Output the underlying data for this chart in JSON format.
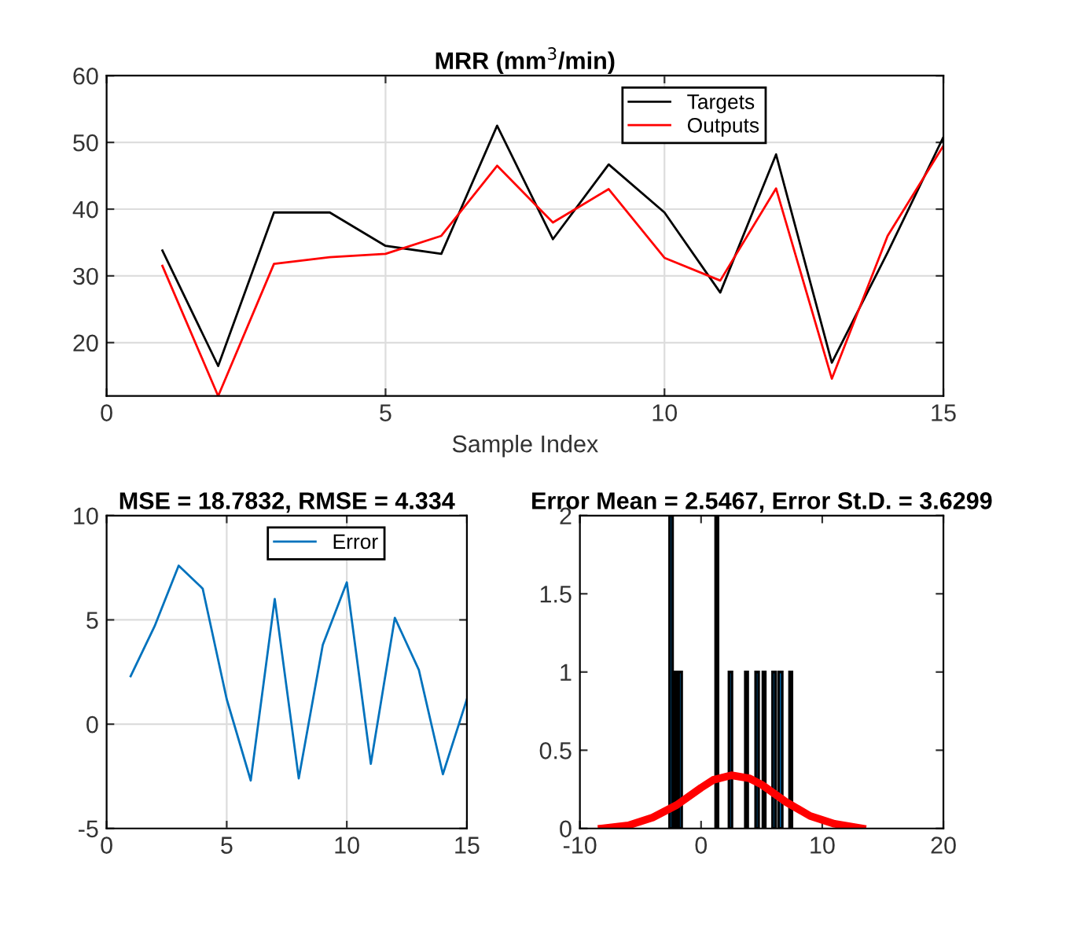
{
  "chart_data": [
    {
      "type": "line",
      "title": "MRR (mm$^{3}$/min)",
      "xlabel": "Sample Index",
      "x": [
        1,
        2,
        3,
        4,
        5,
        6,
        7,
        8,
        9,
        10,
        11,
        12,
        13,
        14,
        15
      ],
      "series": [
        {
          "name": "Targets",
          "color": "#000000",
          "values": [
            33.8,
            16.5,
            39.5,
            39.5,
            34.5,
            33.3,
            52.5,
            35.5,
            46.7,
            39.5,
            27.5,
            48.2,
            17,
            33.5,
            50.8
          ]
        },
        {
          "name": "Outputs",
          "color": "#ff0000",
          "values": [
            31.5,
            12,
            31.8,
            32.8,
            33.3,
            36,
            46.5,
            38,
            43,
            32.7,
            29.3,
            43.1,
            14.6,
            36,
            49.5
          ]
        }
      ],
      "xlim": [
        0,
        15
      ],
      "xticks": [
        0,
        5,
        10,
        15
      ],
      "ylim": [
        12,
        60
      ],
      "yticks": [
        20,
        30,
        40,
        50,
        60
      ],
      "grid": true,
      "legend": "top right"
    },
    {
      "type": "line",
      "title": "MSE = 18.7832, RMSE = 4.334",
      "x": [
        1,
        2,
        3,
        4,
        5,
        6,
        7,
        8,
        9,
        10,
        11,
        12,
        13,
        14,
        15
      ],
      "series": [
        {
          "name": "Error",
          "color": "#0072bd",
          "values": [
            2.3,
            4.7,
            7.6,
            6.5,
            1.2,
            -2.7,
            6.0,
            -2.6,
            3.8,
            6.8,
            -1.9,
            5.1,
            2.6,
            -2.4,
            1.2
          ]
        }
      ],
      "xlim": [
        0,
        15
      ],
      "xticks": [
        0,
        5,
        10,
        15
      ],
      "ylim": [
        -5,
        10
      ],
      "yticks": [
        -5,
        0,
        5,
        10
      ],
      "grid": true,
      "legend": "top right"
    },
    {
      "type": "histogram",
      "title": "Error Mean = 2.5467, Error St.D. = 3.6299",
      "color": "#0072bd",
      "bins": [
        -2.6,
        -2.35,
        -2.2,
        -2.0,
        -1.85,
        -1.6,
        1.2,
        1.4,
        2.3,
        2.55,
        3.65,
        3.85,
        4.5,
        4.75,
        5.1,
        5.3,
        5.9,
        6.15,
        6.4,
        6.7,
        7.3,
        7.5
      ],
      "values": [
        2,
        0,
        1,
        0,
        1,
        0,
        2,
        0,
        1,
        0,
        1,
        0,
        1,
        0,
        1,
        0,
        1,
        0,
        1,
        0,
        1
      ],
      "series": [
        {
          "type": "line",
          "color": "#ff0000",
          "x": [
            -8.2,
            -6,
            -4,
            -2,
            0,
            1,
            2.5,
            4,
            5,
            7,
            9,
            11,
            13.3
          ],
          "values": [
            0,
            0.02,
            0.07,
            0.15,
            0.26,
            0.31,
            0.34,
            0.32,
            0.28,
            0.17,
            0.08,
            0.03,
            0
          ]
        }
      ],
      "xlim": [
        -10,
        20
      ],
      "xticks": [
        -10,
        0,
        10,
        20
      ],
      "ylim": [
        0,
        2
      ],
      "yticks": [
        0,
        0.5,
        1,
        1.5,
        2
      ],
      "grid": false
    }
  ]
}
